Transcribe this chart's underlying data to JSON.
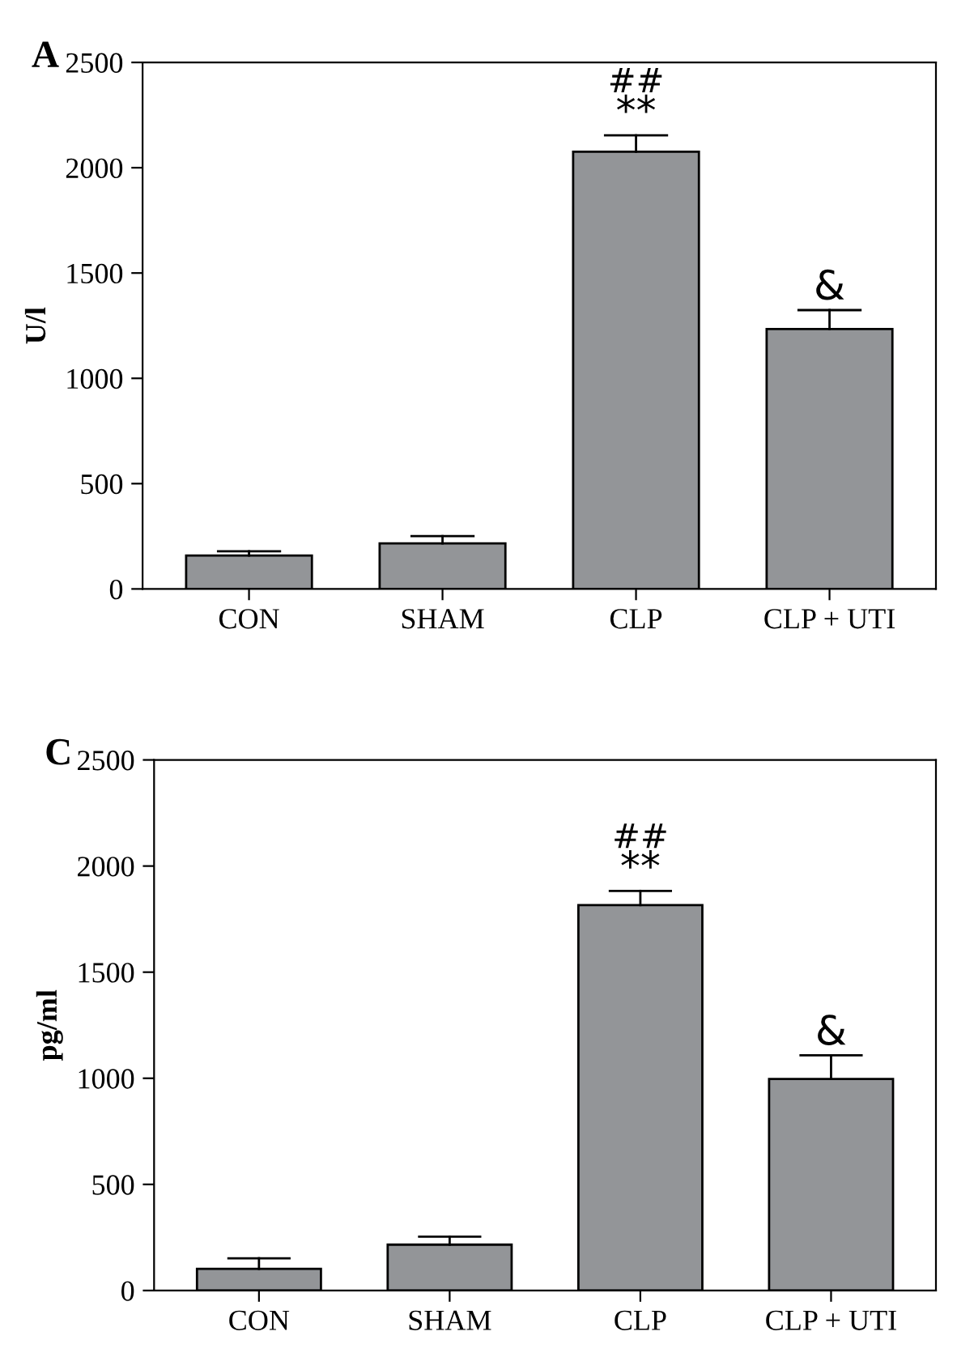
{
  "chart_data": [
    {
      "type": "bar",
      "title": "A",
      "ylabel": "U/l",
      "categories": [
        "CON",
        "SHAM",
        "CLP",
        "CLP + UTI"
      ],
      "values": [
        159,
        216,
        2076,
        1234
      ],
      "errors": [
        [
          159,
          179
        ],
        [
          216,
          251
        ],
        [
          2076,
          2154
        ],
        [
          1234,
          1324
        ]
      ],
      "color": "#939598",
      "ylim": [
        0,
        2500
      ],
      "yticks": [
        0,
        500,
        1000,
        1500,
        2000,
        2500
      ],
      "grid": false,
      "legend": false,
      "annotations": [
        {
          "text": "**",
          "x": "CLP",
          "y": 2154
        },
        {
          "text": "##",
          "x": "CLP",
          "y": 2154
        },
        {
          "text": "&",
          "x": "CLP + UTI",
          "y": 1324
        }
      ]
    },
    {
      "type": "bar",
      "title": "C",
      "ylabel": "pg/ml",
      "categories": [
        "CON",
        "SHAM",
        "CLP",
        "CLP + UTI"
      ],
      "values": [
        102,
        216,
        1816,
        997
      ],
      "errors": [
        [
          102,
          152
        ],
        [
          216,
          254
        ],
        [
          1816,
          1883
        ],
        [
          997,
          1108
        ]
      ],
      "color": "#939598",
      "ylim": [
        0,
        2500
      ],
      "yticks": [
        0,
        500,
        1000,
        1500,
        2000,
        2500
      ],
      "grid": false,
      "legend": false,
      "annotations": [
        {
          "text": "**",
          "x": "CLP",
          "y": 1883
        },
        {
          "text": "##",
          "x": "CLP",
          "y": 1883
        },
        {
          "text": "&",
          "x": "CLP + UTI",
          "y": 1108
        }
      ]
    }
  ]
}
